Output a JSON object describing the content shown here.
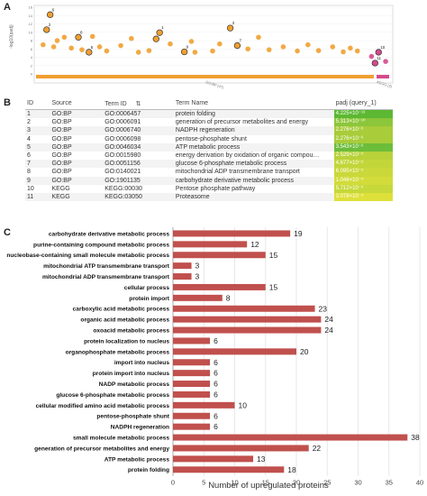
{
  "panels": {
    "a": "A",
    "b": "B",
    "c": "C"
  },
  "manhattan": {
    "ylabel": "-log10(padj)",
    "yticks": [
      "16",
      "14",
      "12",
      "10",
      "8",
      "6",
      "4",
      "2",
      "0"
    ],
    "xlabels": [
      "GO:BP (47)",
      "KEGG (2)"
    ],
    "colors": {
      "gobp": "#f0a030",
      "kegg": "#d44a8a"
    },
    "points": [
      {
        "x": 0.04,
        "y": 14.2,
        "label": "6"
      },
      {
        "x": 0.03,
        "y": 10.6,
        "label": "2"
      },
      {
        "x": 0.12,
        "y": 8.8,
        "label": "8"
      },
      {
        "x": 0.15,
        "y": 5.2,
        "label": "5"
      },
      {
        "x": 0.34,
        "y": 8.4,
        "label": "4"
      },
      {
        "x": 0.35,
        "y": 9.9,
        "label": "1"
      },
      {
        "x": 0.55,
        "y": 11.0,
        "label": "3"
      },
      {
        "x": 0.57,
        "y": 6.8,
        "label": "7"
      },
      {
        "x": 0.42,
        "y": 5.3,
        "label": "9"
      },
      {
        "x": 0.97,
        "y": 5.2,
        "label": "10",
        "kegg": true
      },
      {
        "x": 0.96,
        "y": 2.6,
        "label": "11",
        "kegg": true
      }
    ],
    "unlabeled_points": [
      {
        "x": 0.02,
        "y": 7.0
      },
      {
        "x": 0.05,
        "y": 6.5
      },
      {
        "x": 0.06,
        "y": 8.0
      },
      {
        "x": 0.08,
        "y": 8.8
      },
      {
        "x": 0.1,
        "y": 6.2
      },
      {
        "x": 0.13,
        "y": 5.8
      },
      {
        "x": 0.16,
        "y": 9.0
      },
      {
        "x": 0.18,
        "y": 6.5
      },
      {
        "x": 0.2,
        "y": 5.5
      },
      {
        "x": 0.24,
        "y": 6.8
      },
      {
        "x": 0.27,
        "y": 8.5
      },
      {
        "x": 0.29,
        "y": 5.2
      },
      {
        "x": 0.32,
        "y": 5.6
      },
      {
        "x": 0.38,
        "y": 7.2
      },
      {
        "x": 0.44,
        "y": 7.8
      },
      {
        "x": 0.45,
        "y": 5.2
      },
      {
        "x": 0.5,
        "y": 5.5
      },
      {
        "x": 0.52,
        "y": 7.2
      },
      {
        "x": 0.6,
        "y": 6.0
      },
      {
        "x": 0.63,
        "y": 8.8
      },
      {
        "x": 0.66,
        "y": 5.8
      },
      {
        "x": 0.7,
        "y": 6.5
      },
      {
        "x": 0.74,
        "y": 5.5
      },
      {
        "x": 0.77,
        "y": 7.0
      },
      {
        "x": 0.8,
        "y": 5.6
      },
      {
        "x": 0.84,
        "y": 6.5
      },
      {
        "x": 0.87,
        "y": 5.3
      },
      {
        "x": 0.89,
        "y": 6.2
      },
      {
        "x": 0.91,
        "y": 5.5
      },
      {
        "x": 0.95,
        "y": 4.2,
        "kegg": true
      },
      {
        "x": 0.99,
        "y": 3.0,
        "kegg": true
      }
    ]
  },
  "table": {
    "headers": {
      "id": "ID",
      "source": "Source",
      "term_id": "Term ID",
      "term_name": "Term Name",
      "padj": "padj (query_1)"
    },
    "rows": [
      {
        "id": "1",
        "source": "GO:BP",
        "term_id": "GO:0006457",
        "term_name": "protein folding",
        "padj": "4.225×10⁻¹³",
        "color": "#5cb832"
      },
      {
        "id": "2",
        "source": "GO:BP",
        "term_id": "GO:0006091",
        "term_name": "generation of precursor metabolites and energy",
        "padj": "5.313×10⁻¹⁰",
        "color": "#8cc63a"
      },
      {
        "id": "3",
        "source": "GO:BP",
        "term_id": "GO:0006740",
        "term_name": "NADPH regeneration",
        "padj": "2.276×10⁻⁶",
        "color": "#a8cc3a"
      },
      {
        "id": "4",
        "source": "GO:BP",
        "term_id": "GO:0006098",
        "term_name": "pentose-phosphate shunt",
        "padj": "2.276×10⁻⁶",
        "color": "#a8cc3a"
      },
      {
        "id": "5",
        "source": "GO:BP",
        "term_id": "GO:0046034",
        "term_name": "ATP metabolic process",
        "padj": "3.543×10⁻⁶",
        "color": "#6cbd3a"
      },
      {
        "id": "6",
        "source": "GO:BP",
        "term_id": "GO:0015980",
        "term_name": "energy derivation by oxidation of organic compou…",
        "padj": "2.529×10⁻⁵",
        "color": "#b8d23a"
      },
      {
        "id": "7",
        "source": "GO:BP",
        "term_id": "GO:0051156",
        "term_name": "glucose 6-phosphate metabolic process",
        "padj": "4.677×10⁻⁵",
        "color": "#c2d63a"
      },
      {
        "id": "8",
        "source": "GO:BP",
        "term_id": "GO:0140021",
        "term_name": "mitochondrial ADP transmembrane transport",
        "padj": "6.095×10⁻⁵",
        "color": "#cad83a"
      },
      {
        "id": "9",
        "source": "GO:BP",
        "term_id": "GO:1901135",
        "term_name": "carbohydrate derivative metabolic process",
        "padj": "1.046×10⁻⁴",
        "color": "#d2dc3a"
      },
      {
        "id": "10",
        "source": "KEGG",
        "term_id": "KEGG:00030",
        "term_name": "Pentose phosphate pathway",
        "padj": "5.712×10⁻⁵",
        "color": "#c6d83a"
      },
      {
        "id": "11",
        "source": "KEGG",
        "term_id": "KEGG:03050",
        "term_name": "Proteasome",
        "padj": "3.078×10⁻⁴",
        "color": "#dee03a"
      }
    ]
  },
  "chart_data": {
    "type": "bar",
    "orientation": "horizontal",
    "bar_color": "#c0504d",
    "xlabel": "Number of upregulated proteins",
    "xlim": [
      0,
      40
    ],
    "xticks": [
      "0",
      "5",
      "10",
      "15",
      "20",
      "25",
      "30",
      "35",
      "40"
    ],
    "categories": [
      "carbohydrate derivative metabolic process",
      "purine-containing compound metabolic process",
      "nucleobase-containing small molecule metabolic process",
      "mitochondrial ATP transmembrane transport",
      "mitochondrial ADP transmembrane transport",
      "cellular process",
      "protein import",
      "carboxylic acid metabolic process",
      "organic acid metabolic process",
      "oxoacid metabolic process",
      "protein localization to nucleus",
      "organophosphate metabolic process",
      "import into nucleus",
      "protein import into nucleus",
      "NADP metabolic process",
      "glucose 6-phosphate metabolic process",
      "cellular modified amino acid metabolic process",
      "pentose-phosphate shunt",
      "NADPH regeneration",
      "small molecule metabolic process",
      "generation of precursor metabolites and energy",
      "ATP metabolic process",
      "protein folding"
    ],
    "values": [
      19,
      12,
      15,
      3,
      3,
      15,
      8,
      23,
      24,
      24,
      6,
      20,
      6,
      6,
      6,
      6,
      10,
      6,
      6,
      38,
      22,
      13,
      18
    ],
    "labels": [
      "19",
      "12",
      "15",
      "3",
      "3",
      "15",
      "8",
      "23",
      "24",
      "24",
      "6",
      "20",
      "6",
      "6",
      "6",
      "6",
      "10",
      "6",
      "6",
      "38",
      "22",
      "13",
      "18"
    ]
  }
}
